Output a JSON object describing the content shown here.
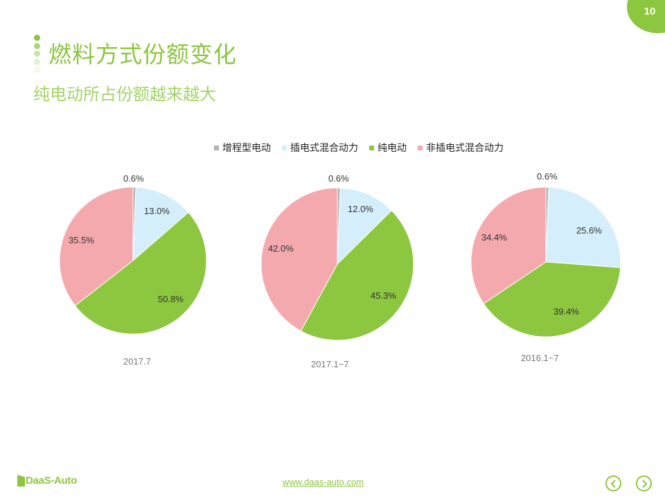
{
  "page_number": "10",
  "header": {
    "title": "燃料方式份额变化",
    "subtitle": "纯电动所占份额越来越大"
  },
  "colors": {
    "accent": "#8dc63f",
    "range_extended": "#b3b3b3",
    "plug_in_hybrid": "#d5eefc",
    "pure_electric": "#8dc63f",
    "non_plug_hybrid": "#f4a9ae"
  },
  "legend": [
    {
      "label": "增程型电动",
      "color": "#b3b3b3"
    },
    {
      "label": "插电式混合动力",
      "color": "#d5eefc"
    },
    {
      "label": "纯电动",
      "color": "#8dc63f"
    },
    {
      "label": "非插电式混合动力",
      "color": "#f4a9ae"
    }
  ],
  "chart_data": [
    {
      "type": "pie",
      "title": "2017.7",
      "categories": [
        "增程型电动",
        "插电式混合动力",
        "纯电动",
        "非插电式混合动力"
      ],
      "values": [
        0.6,
        13.0,
        50.8,
        35.5
      ],
      "labels": [
        "0.6%",
        "13.0%",
        "50.8%",
        "35.5%"
      ]
    },
    {
      "type": "pie",
      "title": "2017.1~7",
      "categories": [
        "增程型电动",
        "插电式混合动力",
        "纯电动",
        "非插电式混合动力"
      ],
      "values": [
        0.6,
        12.0,
        45.3,
        42.0
      ],
      "labels": [
        "0.6%",
        "12.0%",
        "45.3%",
        "42.0%"
      ]
    },
    {
      "type": "pie",
      "title": "2016.1~7",
      "categories": [
        "增程型电动",
        "插电式混合动力",
        "纯电动",
        "非插电式混合动力"
      ],
      "values": [
        0.6,
        25.6,
        39.4,
        34.4
      ],
      "labels": [
        "0.6%",
        "25.6%",
        "39.4%",
        "34.4%"
      ]
    }
  ],
  "footer": {
    "logo": "DaaS-Auto",
    "url": "www.daas-auto.com",
    "prev_icon": "chevron-left-circle-icon",
    "next_icon": "chevron-right-circle-icon"
  }
}
